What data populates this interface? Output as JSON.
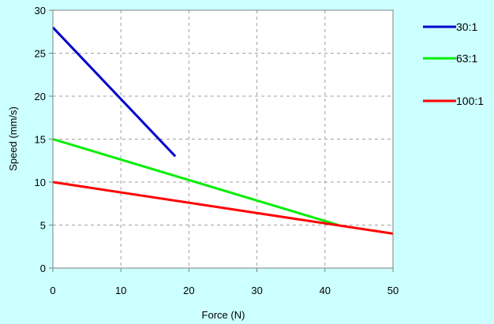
{
  "chart_data": {
    "type": "line",
    "title": "",
    "xlabel": "Force (N)",
    "ylabel": "Speed (mm/s)",
    "xlim": [
      0,
      50
    ],
    "ylim": [
      0,
      30
    ],
    "x_ticks": [
      "0",
      "10",
      "20",
      "30",
      "40",
      "50"
    ],
    "y_ticks": [
      "0",
      "5",
      "10",
      "15",
      "20",
      "25",
      "30"
    ],
    "grid": true,
    "legend_position": "right",
    "series": [
      {
        "name": "30:1",
        "color": "#0000cc",
        "points": [
          [
            0,
            28
          ],
          [
            18,
            13
          ]
        ]
      },
      {
        "name": "63:1",
        "color": "#00ee00",
        "points": [
          [
            0,
            15
          ],
          [
            42,
            5
          ]
        ]
      },
      {
        "name": "100:1",
        "color": "#ff0000",
        "points": [
          [
            0,
            10
          ],
          [
            50,
            4
          ]
        ]
      }
    ]
  }
}
